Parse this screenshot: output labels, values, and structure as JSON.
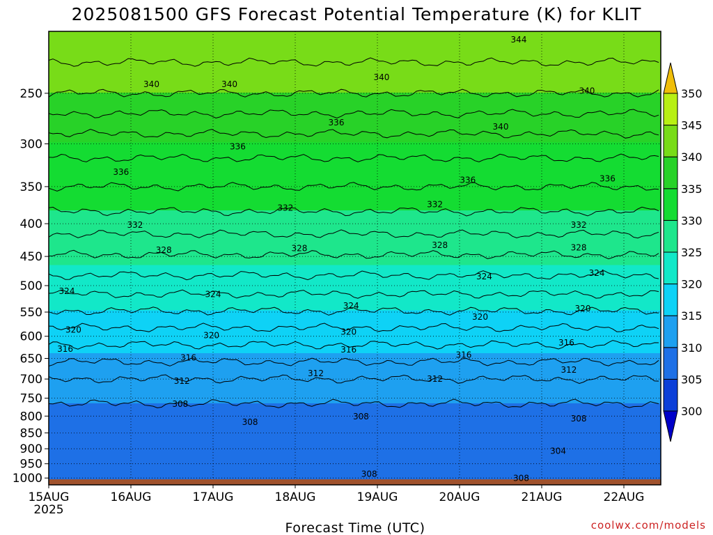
{
  "chart_data": {
    "type": "heatmap",
    "title": "2025081500 GFS Forecast Potential Temperature (K) for KLIT",
    "xlabel": "Forecast Time (UTC)",
    "ylabel": "",
    "x_tick_labels": [
      {
        "label": "15AUG",
        "sublabel": "2025",
        "day": 0
      },
      {
        "label": "16AUG",
        "day": 1
      },
      {
        "label": "17AUG",
        "day": 2
      },
      {
        "label": "18AUG",
        "day": 3
      },
      {
        "label": "19AUG",
        "day": 4
      },
      {
        "label": "20AUG",
        "day": 5
      },
      {
        "label": "21AUG",
        "day": 6
      },
      {
        "label": "22AUG",
        "day": 7
      }
    ],
    "xlim_days": [
      0,
      7.45
    ],
    "y_axis": {
      "units": "hPa",
      "scale": "log",
      "reversed": true,
      "ylim": [
        1025,
        200
      ],
      "ticks": [
        1000,
        950,
        900,
        850,
        800,
        750,
        700,
        650,
        600,
        550,
        500,
        450,
        400,
        350,
        300,
        250
      ]
    },
    "levels": [
      1000,
      925,
      850,
      800,
      700,
      600,
      500,
      400,
      350,
      300,
      250,
      200
    ],
    "profile_theta": [
      308,
      307,
      308,
      309,
      312,
      317,
      323,
      329,
      332,
      335,
      340,
      344
    ],
    "colorbar": {
      "ticks": [
        300,
        305,
        310,
        315,
        320,
        325,
        330,
        335,
        340,
        345,
        350
      ],
      "extend": "both",
      "colors": [
        "#0000c8",
        "#0b3fd8",
        "#1e70e6",
        "#1ea0f0",
        "#0ed2f6",
        "#12e8c8",
        "#1ee68c",
        "#14dc32",
        "#28d228",
        "#78dc18",
        "#b8f014",
        "#fffa28",
        "#f0be0a"
      ]
    },
    "grid": true,
    "contour_interval": 2,
    "contour_labels": [
      {
        "value": 344,
        "day": 5.72,
        "p": 206
      },
      {
        "value": 340,
        "day": 1.25,
        "p": 242
      },
      {
        "value": 340,
        "day": 2.2,
        "p": 242
      },
      {
        "value": 340,
        "day": 4.05,
        "p": 236
      },
      {
        "value": 340,
        "day": 6.55,
        "p": 248
      },
      {
        "value": 340,
        "day": 5.5,
        "p": 282
      },
      {
        "value": 336,
        "day": 3.5,
        "p": 278
      },
      {
        "value": 336,
        "day": 2.3,
        "p": 303
      },
      {
        "value": 336,
        "day": 0.88,
        "p": 332
      },
      {
        "value": 336,
        "day": 5.1,
        "p": 342
      },
      {
        "value": 336,
        "day": 6.8,
        "p": 340
      },
      {
        "value": 332,
        "day": 2.88,
        "p": 378
      },
      {
        "value": 332,
        "day": 4.7,
        "p": 373
      },
      {
        "value": 332,
        "day": 1.05,
        "p": 402
      },
      {
        "value": 332,
        "day": 6.45,
        "p": 402
      },
      {
        "value": 328,
        "day": 1.4,
        "p": 440
      },
      {
        "value": 328,
        "day": 3.05,
        "p": 437
      },
      {
        "value": 328,
        "day": 4.76,
        "p": 432
      },
      {
        "value": 328,
        "day": 6.45,
        "p": 436
      },
      {
        "value": 324,
        "day": 5.3,
        "p": 484
      },
      {
        "value": 324,
        "day": 6.67,
        "p": 478
      },
      {
        "value": 324,
        "day": 0.22,
        "p": 510
      },
      {
        "value": 324,
        "day": 2.0,
        "p": 516
      },
      {
        "value": 324,
        "day": 3.68,
        "p": 538
      },
      {
        "value": 320,
        "day": 6.5,
        "p": 543
      },
      {
        "value": 320,
        "day": 5.25,
        "p": 560
      },
      {
        "value": 320,
        "day": 0.3,
        "p": 586
      },
      {
        "value": 320,
        "day": 1.98,
        "p": 598
      },
      {
        "value": 320,
        "day": 3.65,
        "p": 591
      },
      {
        "value": 316,
        "day": 6.3,
        "p": 614
      },
      {
        "value": 316,
        "day": 0.2,
        "p": 628
      },
      {
        "value": 316,
        "day": 1.7,
        "p": 648
      },
      {
        "value": 316,
        "day": 3.65,
        "p": 630
      },
      {
        "value": 316,
        "day": 5.05,
        "p": 642
      },
      {
        "value": 312,
        "day": 6.33,
        "p": 677
      },
      {
        "value": 312,
        "day": 1.62,
        "p": 705
      },
      {
        "value": 312,
        "day": 3.25,
        "p": 686
      },
      {
        "value": 312,
        "day": 4.7,
        "p": 700
      },
      {
        "value": 308,
        "day": 1.6,
        "p": 766
      },
      {
        "value": 308,
        "day": 2.45,
        "p": 818
      },
      {
        "value": 308,
        "day": 3.8,
        "p": 801
      },
      {
        "value": 308,
        "day": 6.45,
        "p": 808
      },
      {
        "value": 304,
        "day": 6.2,
        "p": 908
      },
      {
        "value": 308,
        "day": 3.9,
        "p": 986
      },
      {
        "value": 308,
        "day": 5.75,
        "p": 1001
      }
    ],
    "ground_pressure": 1005,
    "ground_color": "#a0522d",
    "credit": "coolwx.com/models"
  }
}
